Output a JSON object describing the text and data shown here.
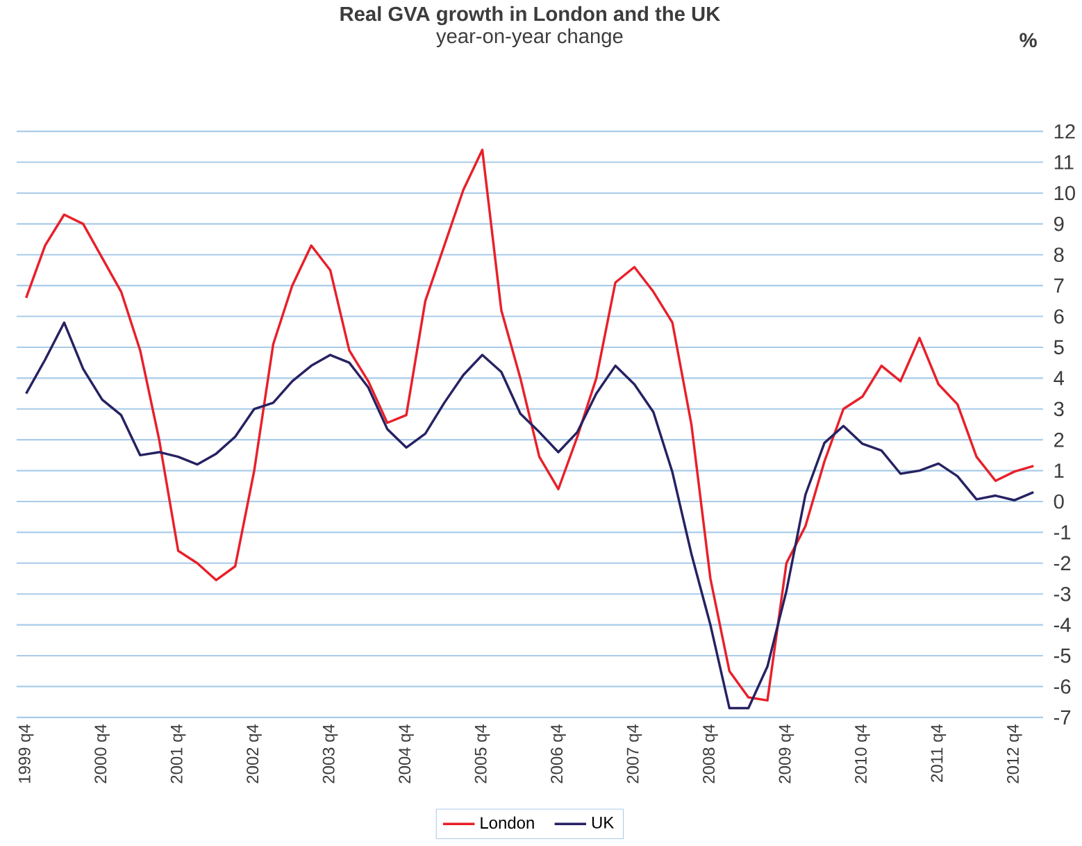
{
  "chart_data": {
    "type": "line",
    "title": "Real GVA growth in London and the UK",
    "subtitle": "year-on-year change",
    "ylabel": "%",
    "categories": [
      "1999 q4",
      null,
      null,
      null,
      "2000 q4",
      null,
      null,
      null,
      "2001 q4",
      null,
      null,
      null,
      "2002 q4",
      null,
      null,
      null,
      "2003 q4",
      null,
      null,
      null,
      "2004 q4",
      null,
      null,
      null,
      "2005 q4",
      null,
      null,
      null,
      "2006 q4",
      null,
      null,
      null,
      "2007 q4",
      null,
      null,
      null,
      "2008 q4",
      null,
      null,
      null,
      "2009 q4",
      null,
      null,
      null,
      "2010 q4",
      null,
      null,
      null,
      "2011 q4",
      null,
      null,
      null,
      "2012 q4",
      null
    ],
    "series": [
      {
        "name": "London",
        "color": "#e8202a",
        "values": [
          6.6,
          8.3,
          9.3,
          9.0,
          7.9,
          6.8,
          4.9,
          2.0,
          -1.6,
          -2.0,
          -2.55,
          -2.1,
          1.0,
          5.1,
          7.0,
          8.3,
          7.5,
          4.9,
          3.9,
          2.55,
          2.8,
          6.5,
          8.3,
          10.1,
          11.4,
          6.2,
          4.0,
          1.45,
          0.4,
          2.1,
          4.0,
          7.1,
          7.6,
          6.8,
          5.8,
          2.5,
          -2.5,
          -5.5,
          -6.35,
          -6.45,
          -2.0,
          -0.8,
          1.3,
          3.0,
          3.4,
          4.4,
          3.9,
          5.3,
          3.8,
          3.15,
          1.45,
          0.67,
          0.97,
          1.15
        ]
      },
      {
        "name": "UK",
        "color": "#262262",
        "values": [
          3.5,
          4.6,
          5.8,
          4.3,
          3.3,
          2.8,
          1.5,
          1.6,
          1.45,
          1.2,
          1.55,
          2.1,
          3.0,
          3.2,
          3.9,
          4.4,
          4.75,
          4.5,
          3.7,
          2.35,
          1.75,
          2.2,
          3.2,
          4.1,
          4.75,
          4.2,
          2.85,
          2.25,
          1.6,
          2.25,
          3.5,
          4.4,
          3.8,
          2.9,
          0.95,
          -1.7,
          -4.0,
          -6.7,
          -6.7,
          -5.35,
          -2.9,
          0.22,
          1.9,
          2.45,
          1.87,
          1.65,
          0.9,
          1.0,
          1.23,
          0.82,
          0.07,
          0.19,
          0.04,
          0.3
        ]
      }
    ],
    "ylim": [
      -7,
      12
    ],
    "yticks": [
      -7,
      -6,
      -5,
      -4,
      -3,
      -2,
      -1,
      0,
      1,
      2,
      3,
      4,
      5,
      6,
      7,
      8,
      9,
      10,
      11,
      12
    ],
    "grid": "y",
    "legend": "bottom",
    "marker": "none",
    "line_style": "solid"
  }
}
